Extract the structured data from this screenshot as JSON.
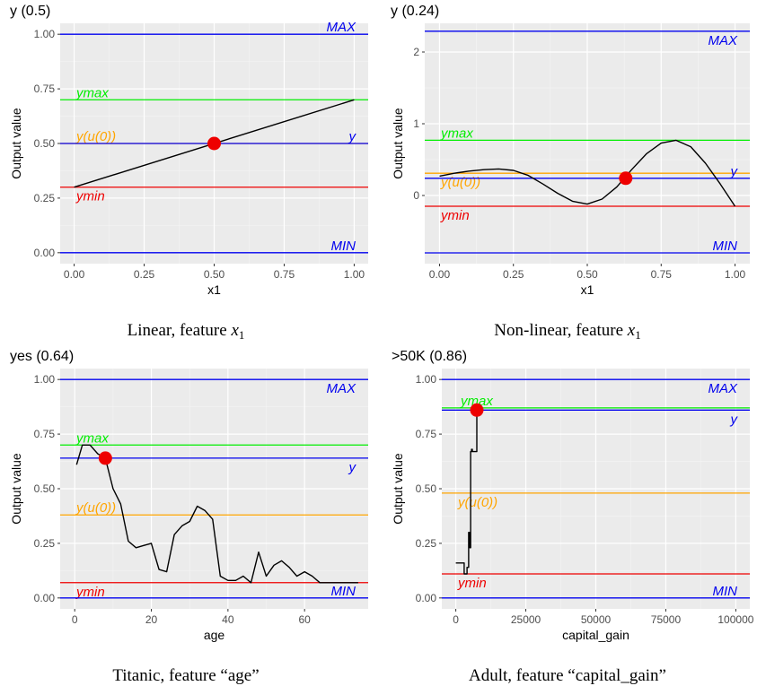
{
  "chart_data": [
    {
      "type": "line",
      "title": "y (0.5)",
      "caption": "Linear, feature ",
      "caption_math": "x",
      "caption_sub": "1",
      "xlabel": "x1",
      "ylabel": "Output value",
      "xlim": [
        -0.05,
        1.05
      ],
      "ylim": [
        -0.05,
        1.05
      ],
      "xticks": [
        0,
        0.25,
        0.5,
        0.75,
        1
      ],
      "xtick_labels": [
        "0.00",
        "0.25",
        "0.50",
        "0.75",
        "1.00"
      ],
      "yticks": [
        0,
        0.25,
        0.5,
        0.75,
        1
      ],
      "ytick_labels": [
        "0.00",
        "0.25",
        "0.50",
        "0.75",
        "1.00"
      ],
      "hlines": [
        {
          "label": "MAX",
          "y": 1.0,
          "color": "#0000ee",
          "label_pos": "right-above"
        },
        {
          "label": "ymax",
          "y": 0.7,
          "color": "#00ee00",
          "label_pos": "left-above"
        },
        {
          "label": "y(u(0))",
          "y": 0.5,
          "color": "#ffa500",
          "label_pos": "left-above"
        },
        {
          "label": "y",
          "y": 0.5,
          "color": "#0000ee",
          "label_pos": "right-above"
        },
        {
          "label": "ymin",
          "y": 0.3,
          "color": "#ee0000",
          "label_pos": "left-below"
        },
        {
          "label": "MIN",
          "y": 0.0,
          "color": "#0000ee",
          "label_pos": "right-above"
        }
      ],
      "line": {
        "x": [
          0,
          1
        ],
        "y": [
          0.3,
          0.7
        ]
      },
      "point": {
        "x": 0.5,
        "y": 0.5
      }
    },
    {
      "type": "line",
      "title": "y (0.24)",
      "caption": "Non-linear, feature ",
      "caption_math": "x",
      "caption_sub": "1",
      "xlabel": "x1",
      "ylabel": "Output value",
      "xlim": [
        -0.05,
        1.05
      ],
      "ylim": [
        -0.95,
        2.4
      ],
      "xticks": [
        0,
        0.25,
        0.5,
        0.75,
        1
      ],
      "xtick_labels": [
        "0.00",
        "0.25",
        "0.50",
        "0.75",
        "1.00"
      ],
      "yticks": [
        0,
        1,
        2
      ],
      "ytick_labels": [
        "0",
        "1",
        "2"
      ],
      "hlines": [
        {
          "label": "MAX",
          "y": 2.29,
          "color": "#0000ee",
          "label_pos": "right-below"
        },
        {
          "label": "ymax",
          "y": 0.77,
          "color": "#00ee00",
          "label_pos": "left-above"
        },
        {
          "label": "y(u(0))",
          "y": 0.31,
          "color": "#ffa500",
          "label_pos": "left-below"
        },
        {
          "label": "y",
          "y": 0.24,
          "color": "#0000ee",
          "label_pos": "right-above"
        },
        {
          "label": "ymin",
          "y": -0.15,
          "color": "#ee0000",
          "label_pos": "left-below"
        },
        {
          "label": "MIN",
          "y": -0.8,
          "color": "#0000ee",
          "label_pos": "right-above"
        }
      ],
      "line": {
        "x": [
          0,
          0.05,
          0.1,
          0.15,
          0.2,
          0.25,
          0.3,
          0.35,
          0.4,
          0.45,
          0.5,
          0.55,
          0.6,
          0.65,
          0.7,
          0.75,
          0.8,
          0.85,
          0.9,
          0.95,
          1
        ],
        "y": [
          0.27,
          0.31,
          0.34,
          0.36,
          0.37,
          0.35,
          0.28,
          0.16,
          0.03,
          -0.08,
          -0.12,
          -0.05,
          0.12,
          0.36,
          0.58,
          0.73,
          0.77,
          0.68,
          0.45,
          0.16,
          -0.15
        ]
      },
      "point": {
        "x": 0.63,
        "y": 0.24
      }
    },
    {
      "type": "line",
      "title": "yes (0.64)",
      "caption": "Titanic, feature “age”",
      "caption_math": "",
      "caption_sub": "",
      "xlabel": "age",
      "ylabel": "Output value",
      "xlim": [
        -3.8,
        76.6
      ],
      "ylim": [
        -0.05,
        1.05
      ],
      "xticks": [
        0,
        20,
        40,
        60
      ],
      "xtick_labels": [
        "0",
        "20",
        "40",
        "60"
      ],
      "yticks": [
        0,
        0.25,
        0.5,
        0.75,
        1
      ],
      "ytick_labels": [
        "0.00",
        "0.25",
        "0.50",
        "0.75",
        "1.00"
      ],
      "hlines": [
        {
          "label": "MAX",
          "y": 1.0,
          "color": "#0000ee",
          "label_pos": "right-below"
        },
        {
          "label": "ymax",
          "y": 0.7,
          "color": "#00ee00",
          "label_pos": "left-above"
        },
        {
          "label": "y",
          "y": 0.64,
          "color": "#0000ee",
          "label_pos": "right-below"
        },
        {
          "label": "y(u(0))",
          "y": 0.38,
          "color": "#ffa500",
          "label_pos": "left-above"
        },
        {
          "label": "ymin",
          "y": 0.07,
          "color": "#ee0000",
          "label_pos": "left-below"
        },
        {
          "label": "MIN",
          "y": 0.0,
          "color": "#0000ee",
          "label_pos": "right-above"
        }
      ],
      "line": {
        "x": [
          0.5,
          2,
          4,
          6,
          8,
          10,
          12,
          14,
          16,
          18,
          20,
          22,
          24,
          26,
          28,
          30,
          32,
          34,
          36,
          38,
          40,
          42,
          44,
          46,
          48,
          50,
          52,
          54,
          56,
          58,
          60,
          62,
          64,
          66,
          68,
          70,
          72,
          74
        ],
        "y": [
          0.61,
          0.7,
          0.7,
          0.66,
          0.64,
          0.5,
          0.43,
          0.26,
          0.23,
          0.24,
          0.25,
          0.13,
          0.12,
          0.29,
          0.33,
          0.35,
          0.42,
          0.4,
          0.36,
          0.1,
          0.08,
          0.08,
          0.1,
          0.07,
          0.21,
          0.1,
          0.15,
          0.17,
          0.14,
          0.1,
          0.12,
          0.1,
          0.07,
          0.07,
          0.07,
          0.07,
          0.07,
          0.07
        ]
      },
      "point": {
        "x": 8,
        "y": 0.64
      }
    },
    {
      "type": "line",
      "title": ">50K (0.86)",
      "caption": "Adult, feature “capital_gain”",
      "caption_math": "",
      "caption_sub": "",
      "xlabel": "capital_gain",
      "ylabel": "Output value",
      "xlim": [
        -5000,
        105000
      ],
      "ylim": [
        -0.05,
        1.05
      ],
      "xticks": [
        0,
        25000,
        50000,
        75000,
        100000
      ],
      "xtick_labels": [
        "0",
        "25000",
        "50000",
        "75000",
        "100000"
      ],
      "yticks": [
        0,
        0.25,
        0.5,
        0.75,
        1
      ],
      "ytick_labels": [
        "0.00",
        "0.25",
        "0.50",
        "0.75",
        "1.00"
      ],
      "hlines": [
        {
          "label": "MAX",
          "y": 1.0,
          "color": "#0000ee",
          "label_pos": "right-below"
        },
        {
          "label": "ymax",
          "y": 0.87,
          "color": "#00ee00",
          "label_pos": "left-above-at-point"
        },
        {
          "label": "y",
          "y": 0.86,
          "color": "#0000ee",
          "label_pos": "right-below"
        },
        {
          "label": "y(u(0))",
          "y": 0.48,
          "color": "#ffa500",
          "label_pos": "left-below"
        },
        {
          "label": "ymin",
          "y": 0.11,
          "color": "#ee0000",
          "label_pos": "left-below"
        },
        {
          "label": "MIN",
          "y": 0.0,
          "color": "#0000ee",
          "label_pos": "right-above"
        }
      ],
      "line": {
        "x": [
          0,
          3000,
          3000,
          4000,
          4000,
          4600,
          4600,
          5000,
          5000,
          5300,
          5300,
          5600,
          5600,
          5900,
          5900,
          7500,
          7500
        ],
        "y": [
          0.16,
          0.16,
          0.11,
          0.11,
          0.14,
          0.14,
          0.3,
          0.3,
          0.23,
          0.23,
          0.67,
          0.67,
          0.68,
          0.68,
          0.67,
          0.67,
          0.86
        ]
      },
      "point": {
        "x": 7500,
        "y": 0.86
      }
    }
  ]
}
